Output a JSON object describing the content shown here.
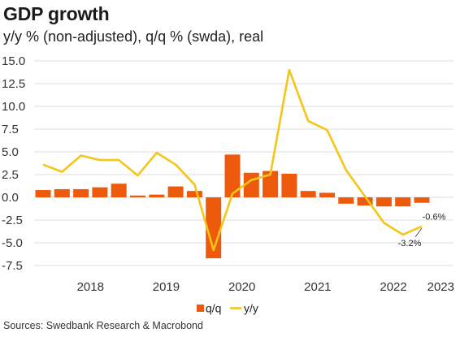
{
  "header": {
    "title": "GDP growth",
    "subtitle": "y/y % (non-adjusted), q/q % (swda), real"
  },
  "footer": {
    "source": "Sources: Swedbank Research & Macrobond"
  },
  "colors": {
    "qq": "#ee5a0c",
    "yy": "#f5c518",
    "grid": "#dedede"
  },
  "chart_data": {
    "type": "bar+line",
    "title": "GDP growth",
    "subtitle": "y/y % (non-adjusted), q/q % (swda), real",
    "xlabel": "",
    "ylabel": "",
    "ylim": [
      -7.5,
      15.0
    ],
    "yticks": [
      15.0,
      12.5,
      10.0,
      7.5,
      5.0,
      2.5,
      0.0,
      -2.5,
      -5.0,
      -7.5
    ],
    "ytick_labels": [
      "15.0",
      "12.5",
      "10.0",
      "7.5",
      "5.0",
      "2.5",
      "0.0",
      "-2.5",
      "-5.0",
      "-7.5"
    ],
    "x_tick_labels": [
      "2018",
      "2019",
      "2020",
      "2021",
      "2022",
      "2023"
    ],
    "quarters": [
      "2017Q4",
      "2018Q1",
      "2018Q2",
      "2018Q3",
      "2018Q4",
      "2019Q1",
      "2019Q2",
      "2019Q3",
      "2019Q4",
      "2020Q1",
      "2020Q2",
      "2020Q3",
      "2020Q4",
      "2021Q1",
      "2021Q2",
      "2021Q3",
      "2021Q4",
      "2022Q1",
      "2022Q2",
      "2022Q3",
      "2022Q4",
      "2023Q1"
    ],
    "grid": "horizontal",
    "legend_position": "bottom-center",
    "series": [
      {
        "name": "q/q",
        "kind": "bar",
        "color": "#ee5a0c",
        "values": [
          0.8,
          0.9,
          0.9,
          1.1,
          1.5,
          0.2,
          0.3,
          1.2,
          0.7,
          -6.7,
          4.7,
          2.7,
          2.9,
          2.6,
          0.7,
          0.5,
          -0.7,
          -0.9,
          -1.0,
          -1.0,
          -0.6,
          null
        ]
      },
      {
        "name": "y/y",
        "kind": "line",
        "color": "#f5c518",
        "values": [
          3.6,
          2.8,
          4.6,
          4.1,
          4.1,
          2.4,
          4.9,
          3.6,
          1.4,
          -5.8,
          0.4,
          1.9,
          2.5,
          14.0,
          8.4,
          7.4,
          3.0,
          0.1,
          -2.8,
          -4.1,
          -3.2,
          null
        ]
      }
    ],
    "annotations": [
      {
        "text": "-0.6%",
        "series": "q/q",
        "quarter": "2022Q4"
      },
      {
        "text": "-3.2%",
        "series": "y/y",
        "quarter": "2022Q4"
      }
    ]
  }
}
